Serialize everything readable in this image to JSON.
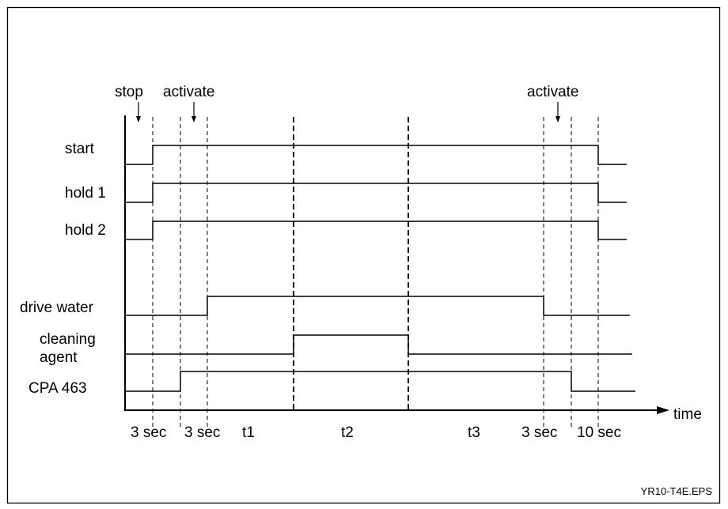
{
  "figure_id": "YR10-T4E.EPS",
  "axis_label": "time",
  "events": [
    {
      "label": "stop"
    },
    {
      "label": "activate"
    },
    {
      "label": "activate"
    }
  ],
  "signals": [
    {
      "label": "start"
    },
    {
      "label": "hold 1"
    },
    {
      "label": "hold 2"
    },
    {
      "label": "drive water"
    },
    {
      "label": "cleaning",
      "label2": "agent"
    },
    {
      "label": "CPA 463"
    }
  ],
  "intervals": [
    "3 sec",
    "3 sec",
    "t1",
    "t2",
    "t3",
    "3 sec",
    "10 sec"
  ],
  "colors": {
    "line": "#000000",
    "background": "#ffffff"
  }
}
